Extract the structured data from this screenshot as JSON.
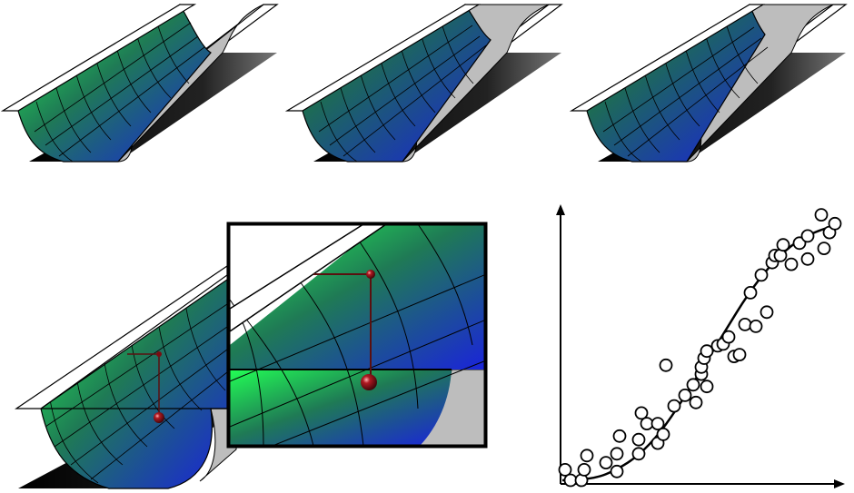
{
  "colors": {
    "surface_bright": "#22ff55",
    "surface_mid": "#1f7a55",
    "surface_deep": "#1a22dd",
    "shadow": "#111111",
    "rail": "#ffffff",
    "rail_stroke": "#000000",
    "wall_gray": "#b8b8b8",
    "marker": "#7a0d12",
    "stem": "#5a1010"
  },
  "panels": [
    {
      "id": "trough-1",
      "far_end_gray": false
    },
    {
      "id": "trough-2",
      "far_end_gray": true
    },
    {
      "id": "trough-3",
      "far_end_gray": true
    }
  ],
  "chart_data": {
    "type": "scatter",
    "title": "",
    "xlabel": "",
    "ylabel": "",
    "xlim": [
      0,
      10
    ],
    "ylim": [
      0,
      10
    ],
    "points": [
      [
        0.05,
        0.35
      ],
      [
        0.15,
        0.05
      ],
      [
        0.35,
        0.05
      ],
      [
        0.4,
        0.35
      ],
      [
        0.45,
        0.75
      ],
      [
        0.8,
        0.55
      ],
      [
        1.0,
        0.8
      ],
      [
        1.0,
        0.3
      ],
      [
        1.05,
        1.3
      ],
      [
        1.4,
        0.8
      ],
      [
        1.4,
        1.2
      ],
      [
        1.45,
        1.95
      ],
      [
        1.55,
        1.65
      ],
      [
        1.75,
        1.65
      ],
      [
        1.75,
        1.1
      ],
      [
        1.85,
        1.35
      ],
      [
        1.9,
        3.3
      ],
      [
        2.05,
        2.15
      ],
      [
        2.25,
        2.45
      ],
      [
        2.4,
        2.75
      ],
      [
        2.45,
        2.25
      ],
      [
        2.55,
        3.05
      ],
      [
        2.55,
        3.25
      ],
      [
        2.6,
        3.5
      ],
      [
        2.65,
        3.7
      ],
      [
        2.65,
        2.7
      ],
      [
        2.85,
        3.85
      ],
      [
        2.95,
        3.9
      ],
      [
        3.05,
        4.1
      ],
      [
        3.15,
        3.55
      ],
      [
        3.25,
        3.6
      ],
      [
        3.35,
        4.45
      ],
      [
        3.45,
        5.35
      ],
      [
        3.55,
        4.4
      ],
      [
        3.65,
        5.85
      ],
      [
        3.75,
        4.8
      ],
      [
        3.85,
        6.2
      ],
      [
        3.9,
        6.4
      ],
      [
        4.0,
        6.4
      ],
      [
        4.05,
        6.7
      ],
      [
        4.2,
        6.15
      ],
      [
        4.35,
        6.75
      ],
      [
        4.5,
        6.95
      ],
      [
        4.5,
        6.3
      ],
      [
        4.75,
        7.55
      ],
      [
        4.8,
        6.6
      ],
      [
        4.9,
        7.05
      ],
      [
        5.0,
        7.3
      ]
    ],
    "curve": [
      [
        0.0,
        0.05
      ],
      [
        0.6,
        0.1
      ],
      [
        1.0,
        0.35
      ],
      [
        1.4,
        0.75
      ],
      [
        1.8,
        1.4
      ],
      [
        2.2,
        2.3
      ],
      [
        2.6,
        3.3
      ],
      [
        3.0,
        4.3
      ],
      [
        3.4,
        5.3
      ],
      [
        3.8,
        6.1
      ],
      [
        4.2,
        6.7
      ],
      [
        4.6,
        7.05
      ],
      [
        5.0,
        7.25
      ]
    ]
  }
}
